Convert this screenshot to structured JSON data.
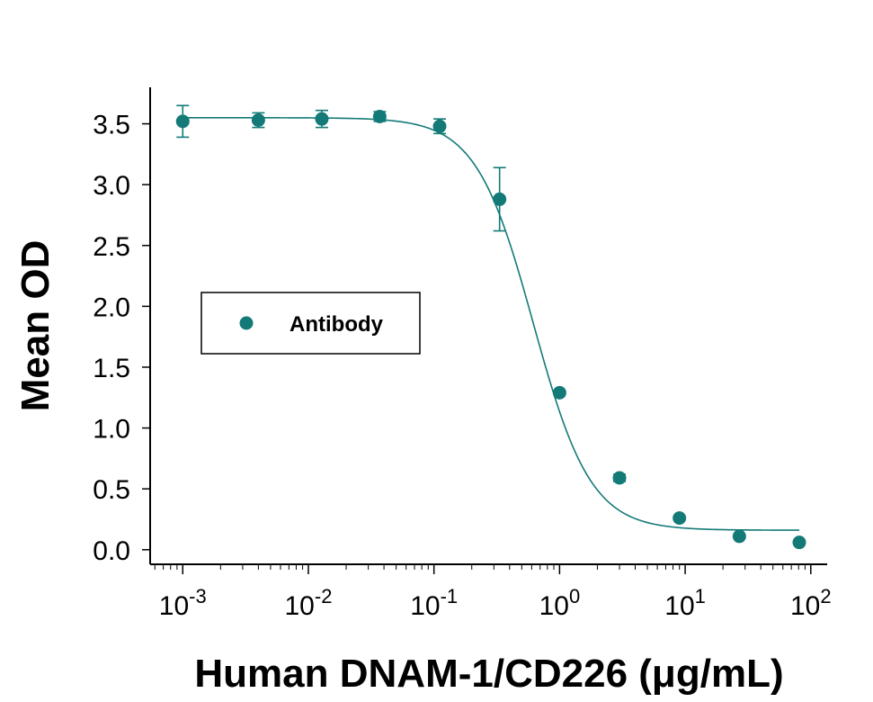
{
  "chart_data": {
    "type": "scatter",
    "title": "",
    "xlabel": "Human DNAM-1/CD226 (μg/mL)",
    "ylabel": "Mean OD",
    "x_scale": "log",
    "xlim": [
      0.00055,
      135
    ],
    "ylim": [
      -0.12,
      3.8
    ],
    "x_ticks": [
      {
        "value": 0.001,
        "base": "10",
        "exp": "-3"
      },
      {
        "value": 0.01,
        "base": "10",
        "exp": "-2"
      },
      {
        "value": 0.1,
        "base": "10",
        "exp": "-1"
      },
      {
        "value": 1,
        "base": "10",
        "exp": "0"
      },
      {
        "value": 10,
        "base": "10",
        "exp": "1"
      },
      {
        "value": 100,
        "base": "10",
        "exp": "2"
      }
    ],
    "y_ticks": [
      {
        "value": 0,
        "label": "0.0"
      },
      {
        "value": 0.5,
        "label": "0.5"
      },
      {
        "value": 1,
        "label": "1.0"
      },
      {
        "value": 1.5,
        "label": "1.5"
      },
      {
        "value": 2,
        "label": "2.0"
      },
      {
        "value": 2.5,
        "label": "2.5"
      },
      {
        "value": 3,
        "label": "3.0"
      },
      {
        "value": 3.5,
        "label": "3.5"
      }
    ],
    "legend": {
      "position": "middle-left",
      "entries": [
        "Antibody"
      ]
    },
    "color": "#137a78",
    "series": [
      {
        "name": "Antibody",
        "x": [
          0.001,
          0.004,
          0.0128,
          0.037,
          0.111,
          0.333,
          1.0,
          3.0,
          9.0,
          27.0,
          81.0
        ],
        "y": [
          3.52,
          3.53,
          3.54,
          3.56,
          3.48,
          2.88,
          1.29,
          0.59,
          0.26,
          0.11,
          0.06
        ],
        "err": [
          0.13,
          0.06,
          0.07,
          0.04,
          0.06,
          0.26,
          0.0,
          0.03,
          0.0,
          0.0,
          0.0
        ]
      }
    ],
    "fit": {
      "model": "4PL",
      "top": 3.55,
      "bottom": 0.16,
      "ec50": 0.62,
      "hill": 1.9,
      "x_range": [
        0.001,
        81
      ]
    }
  }
}
